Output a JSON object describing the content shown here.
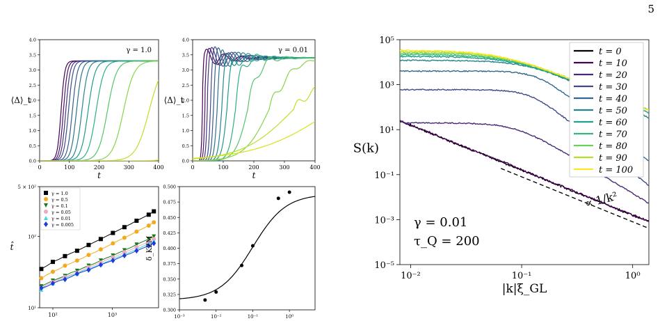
{
  "page": {
    "number": "5"
  },
  "chart_data": [
    {
      "type": "line",
      "panel": "top-left",
      "annotation": "γ = 1.0",
      "xlabel": "t",
      "ylabel": "⟨Δ⟩_t",
      "xlim": [
        0,
        400
      ],
      "ylim": [
        0,
        4.0
      ],
      "xticks": [
        "0",
        "100",
        "200",
        "300",
        "400"
      ],
      "yticks": [
        "0.0",
        "0.5",
        "1.0",
        "1.5",
        "2.0",
        "2.5",
        "3.0",
        "3.5",
        "4.0"
      ],
      "series": [
        {
          "color": "#440154",
          "t50": 72,
          "k": 0.16,
          "plateau": 3.3
        },
        {
          "color": "#471466",
          "t50": 80,
          "k": 0.15,
          "plateau": 3.3
        },
        {
          "color": "#46327e",
          "t50": 88,
          "k": 0.14,
          "plateau": 3.3
        },
        {
          "color": "#3e4a89",
          "t50": 97,
          "k": 0.13,
          "plateau": 3.3
        },
        {
          "color": "#365c8d",
          "t50": 110,
          "k": 0.12,
          "plateau": 3.3
        },
        {
          "color": "#2c728e",
          "t50": 124,
          "k": 0.11,
          "plateau": 3.3
        },
        {
          "color": "#24868e",
          "t50": 142,
          "k": 0.1,
          "plateau": 3.3
        },
        {
          "color": "#1f9a8a",
          "t50": 163,
          "k": 0.085,
          "plateau": 3.3
        },
        {
          "color": "#2ab07f",
          "t50": 190,
          "k": 0.075,
          "plateau": 3.3
        },
        {
          "color": "#52c569",
          "t50": 228,
          "k": 0.065,
          "plateau": 3.3
        },
        {
          "color": "#86d549",
          "t50": 282,
          "k": 0.055,
          "plateau": 3.3
        },
        {
          "color": "#bddf26",
          "t50": 368,
          "k": 0.045,
          "plateau": 3.3
        },
        {
          "color": "#d7e219",
          "t50": 520,
          "k": 0.04,
          "plateau": 3.3
        }
      ]
    },
    {
      "type": "line",
      "panel": "top-middle",
      "annotation": "γ = 0.01",
      "xlabel": "t",
      "ylabel": "⟨Δ⟩_t",
      "xlim": [
        0,
        400
      ],
      "ylim": [
        0,
        4.0
      ],
      "xticks": [
        "0",
        "100",
        "200",
        "300",
        "400"
      ],
      "yticks": [
        "0.0",
        "0.5",
        "1.0",
        "1.5",
        "2.0",
        "2.5",
        "3.0",
        "3.5",
        "4.0"
      ],
      "series": [
        {
          "color": "#440154",
          "t50": 32,
          "k": 0.5,
          "plateau": 3.4,
          "osc": 0.35
        },
        {
          "color": "#471466",
          "t50": 40,
          "k": 0.4,
          "plateau": 3.4,
          "osc": 0.4
        },
        {
          "color": "#46327e",
          "t50": 48,
          "k": 0.35,
          "plateau": 3.4,
          "osc": 0.45
        },
        {
          "color": "#3e4a89",
          "t50": 58,
          "k": 0.3,
          "plateau": 3.4,
          "osc": 0.5
        },
        {
          "color": "#365c8d",
          "t50": 68,
          "k": 0.25,
          "plateau": 3.4,
          "osc": 0.5
        },
        {
          "color": "#2c728e",
          "t50": 80,
          "k": 0.2,
          "plateau": 3.4,
          "osc": 0.5
        },
        {
          "color": "#24868e",
          "t50": 95,
          "k": 0.16,
          "plateau": 3.4,
          "osc": 0.45
        },
        {
          "color": "#1f9a8a",
          "t50": 112,
          "k": 0.12,
          "plateau": 3.4,
          "osc": 0.4
        },
        {
          "color": "#2ab07f",
          "t50": 140,
          "k": 0.09,
          "plateau": 3.4,
          "osc": 0.35
        },
        {
          "color": "#52c569",
          "t50": 180,
          "k": 0.05,
          "plateau": 3.4,
          "osc": 0.3
        },
        {
          "color": "#86d549",
          "t50": 250,
          "k": 0.025,
          "plateau": 3.4,
          "osc": 0.25
        },
        {
          "color": "#bddf26",
          "t50": 330,
          "k": 0.012,
          "plateau": 3.4,
          "osc": 0.2
        },
        {
          "color": "#d7e219",
          "t50": 460,
          "k": 0.008,
          "plateau": 3.4,
          "osc": 0.15
        }
      ]
    },
    {
      "type": "scatter",
      "panel": "bottom-left",
      "scale": "log-log",
      "xlabel": "",
      "ylabel": "t̂",
      "xlim": [
        60,
        6000
      ],
      "ylim": [
        10,
        500
      ],
      "yticks": [
        "10¹",
        "10²",
        "5 × 10²"
      ],
      "xticks": [
        "10²",
        "10³"
      ],
      "legend_position": "top-left",
      "series": [
        {
          "name": "γ = 1.0",
          "color": "#000000",
          "marker": "square",
          "x": [
            64,
            80,
            100,
            128,
            160,
            200,
            256,
            320,
            400,
            512,
            640,
            800,
            1024,
            1280,
            1600,
            2048,
            2560,
            3200,
            4096,
            5000
          ],
          "y": [
            35,
            39,
            44,
            48,
            53,
            58,
            63,
            69,
            76,
            84,
            92,
            101,
            112,
            123,
            135,
            150,
            166,
            182,
            202,
            225
          ]
        },
        {
          "name": "γ = 0.5",
          "color": "#f4a81c",
          "marker": "circle",
          "x": [
            64,
            80,
            100,
            128,
            160,
            200,
            256,
            320,
            400,
            512,
            640,
            800,
            1024,
            1280,
            1600,
            2048,
            2560,
            3200,
            4096,
            5000
          ],
          "y": [
            26,
            29,
            32,
            35,
            39,
            42,
            46,
            50,
            55,
            60,
            66,
            72,
            80,
            88,
            96,
            106,
            117,
            128,
            142,
            158
          ]
        },
        {
          "name": "γ = 0.1",
          "color": "#1a7a1a",
          "marker": "triangle-down",
          "x": [
            64,
            80,
            100,
            128,
            160,
            200,
            256,
            320,
            400,
            512,
            640,
            800,
            1024,
            1280,
            1600,
            2048,
            2560,
            3200,
            4096,
            5000
          ],
          "y": [
            20,
            22,
            24,
            26,
            28,
            31,
            33,
            36,
            39,
            42,
            46,
            50,
            54,
            59,
            64,
            70,
            77,
            84,
            92,
            100
          ]
        },
        {
          "name": "γ = 0.05",
          "color": "#f0a8c0",
          "marker": "circle",
          "x": [
            64,
            80,
            100,
            128,
            160,
            200,
            256,
            320,
            400,
            512,
            640,
            800,
            1024,
            1280,
            1600,
            2048,
            2560,
            3200,
            4096,
            5000
          ],
          "y": [
            19,
            21,
            23,
            25,
            27,
            29,
            31,
            34,
            37,
            40,
            43,
            47,
            51,
            55,
            60,
            65,
            71,
            77,
            84,
            92
          ]
        },
        {
          "name": "γ = 0.01",
          "color": "#40d8e8",
          "marker": "triangle-up",
          "x": [
            64,
            80,
            100,
            128,
            160,
            200,
            256,
            320,
            400,
            512,
            640,
            800,
            1024,
            1280,
            1600,
            2048,
            2560,
            3200,
            4096,
            5000
          ],
          "y": [
            18,
            20,
            22,
            24,
            26,
            28,
            30,
            33,
            35,
            38,
            41,
            44,
            48,
            52,
            56,
            61,
            66,
            72,
            79,
            86
          ]
        },
        {
          "name": "γ = 0.005",
          "color": "#1f3ad8",
          "marker": "diamond",
          "x": [
            64,
            80,
            100,
            128,
            160,
            200,
            256,
            320,
            400,
            512,
            640,
            800,
            1024,
            1280,
            1600,
            2048,
            2560,
            3200,
            4096,
            5000
          ],
          "y": [
            19,
            20,
            22,
            24,
            25,
            27,
            30,
            32,
            34,
            37,
            40,
            43,
            46,
            50,
            54,
            58,
            63,
            68,
            74,
            80
          ]
        }
      ]
    },
    {
      "type": "scatter",
      "panel": "bottom-middle",
      "xscale": "log",
      "ylabel": "δ_KZM",
      "xlim": [
        0.001,
        5
      ],
      "ylim": [
        0.3,
        0.5
      ],
      "yticks": [
        "0.300",
        "0.325",
        "0.350",
        "0.375",
        "0.400",
        "0.425",
        "0.450",
        "0.475",
        "0.500"
      ],
      "xticks": [
        "10⁻³",
        "10⁻²",
        "10⁻¹",
        "10⁰"
      ],
      "points": {
        "x": [
          0.005,
          0.01,
          0.05,
          0.1,
          0.5,
          1.0
        ],
        "y": [
          0.316,
          0.329,
          0.372,
          0.404,
          0.481,
          0.491
        ]
      },
      "fit": {
        "low": 0.316,
        "high": 0.488,
        "center": 0.1,
        "width": 0.45
      }
    },
    {
      "type": "line",
      "panel": "right",
      "scale": "log-log",
      "xlabel": "|k|ξ_GL",
      "ylabel": "S(k)",
      "xlim": [
        0.008,
        1.4
      ],
      "ylim": [
        1e-05,
        100000
      ],
      "xticks": [
        "10⁻²",
        "10⁻¹",
        "10⁰"
      ],
      "yticks": [
        "10⁻⁵",
        "10⁻³",
        "10⁻¹",
        "10¹",
        "10³",
        "10⁵"
      ],
      "text_gamma": "γ = 0.01",
      "text_tau": "τ_Q = 200",
      "text_powerlaw": "∝ 1/k²",
      "legend_position": "top-right",
      "series": [
        {
          "name": "t = 0",
          "color": "#000000",
          "A": 0.22,
          "kc": 0.03,
          "n": 2
        },
        {
          "name": "t = 10",
          "color": "#440154",
          "A": 1.1,
          "kc": 0.055,
          "n": 3
        },
        {
          "name": "t = 20",
          "color": "#482878",
          "A": 20,
          "kc": 0.09,
          "n": 3
        },
        {
          "name": "t = 30",
          "color": "#3e4a89",
          "A": 600,
          "kc": 0.12,
          "n": 4
        },
        {
          "name": "t = 40",
          "color": "#31688e",
          "A": 4000,
          "kc": 0.14,
          "n": 4
        },
        {
          "name": "t = 50",
          "color": "#26828e",
          "A": 12000,
          "kc": 0.12,
          "n": 2.4
        },
        {
          "name": "t = 60",
          "color": "#1f9e89",
          "A": 18000,
          "kc": 0.09,
          "n": 2.1
        },
        {
          "name": "t = 70",
          "color": "#35b779",
          "A": 22000,
          "kc": 0.08,
          "n": 2.0
        },
        {
          "name": "t = 80",
          "color": "#6ece58",
          "A": 26000,
          "kc": 0.075,
          "n": 2.0
        },
        {
          "name": "t = 90",
          "color": "#b5de2b",
          "A": 30000,
          "kc": 0.07,
          "n": 2.0
        },
        {
          "name": "t = 100",
          "color": "#fde725",
          "A": 34000,
          "kc": 0.065,
          "n": 2.0
        }
      ]
    }
  ]
}
